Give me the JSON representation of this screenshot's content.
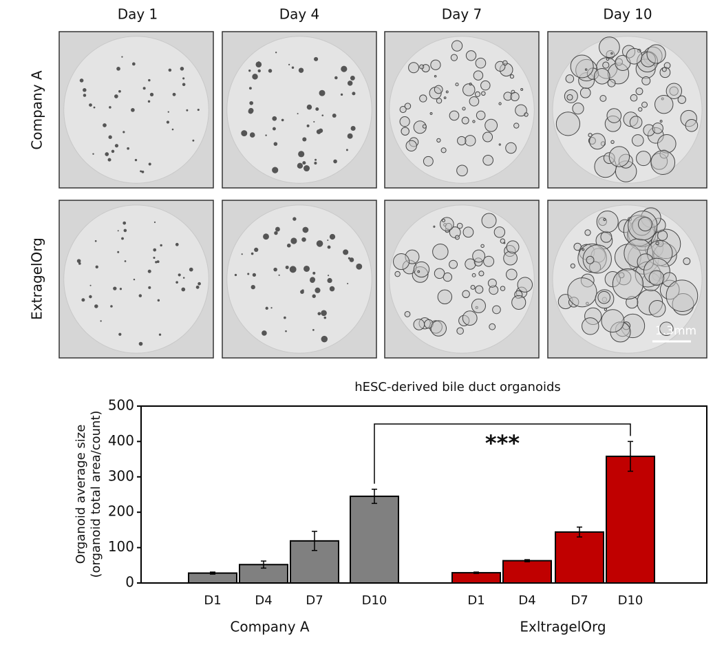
{
  "images": {
    "columns": [
      "Day 1",
      "Day 4",
      "Day 7",
      "Day 10"
    ],
    "rows": [
      "Company A",
      "ExtragelOrg"
    ],
    "scale_bar": "1.3mm"
  },
  "chart_data": {
    "type": "bar",
    "title": "hESC-derived bile duct organoids",
    "y_label": [
      "Organoid average size",
      "(organoid total area/count)"
    ],
    "categories": [
      "D1",
      "D4",
      "D7",
      "D10"
    ],
    "series": [
      {
        "name": "Company A",
        "color": "#808080",
        "values": [
          28,
          52,
          119,
          245
        ],
        "errors": [
          3,
          10,
          27,
          20
        ]
      },
      {
        "name": "ExltragelOrg",
        "color": "#c00000",
        "values": [
          29,
          63,
          144,
          358
        ],
        "errors": [
          2,
          3,
          14,
          42
        ]
      }
    ],
    "ylim": [
      0,
      500
    ],
    "yticks": [
      0,
      100,
      200,
      300,
      400,
      500
    ],
    "annotation": "***"
  }
}
